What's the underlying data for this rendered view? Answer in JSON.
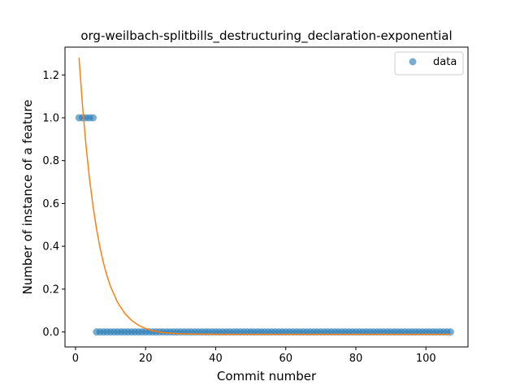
{
  "chart_data": {
    "type": "scatter",
    "title": "org-weilbach-splitbills_destructuring_declaration-exponential",
    "xlabel": "Commit number",
    "ylabel": "Number of instance of a feature",
    "xlim": [
      -3,
      112
    ],
    "ylim": [
      -0.07,
      1.33
    ],
    "x_ticks": [
      0,
      20,
      40,
      60,
      80,
      100
    ],
    "y_ticks": [
      0.0,
      0.2,
      0.4,
      0.6,
      0.8,
      1.0,
      1.2
    ],
    "x_tick_labels": [
      "0",
      "20",
      "40",
      "60",
      "80",
      "100"
    ],
    "y_tick_labels": [
      "0.0",
      "0.2",
      "0.4",
      "0.6",
      "0.8",
      "1.0",
      "1.2"
    ],
    "grid": false,
    "legend_position": "top-right",
    "series": [
      {
        "name": "data",
        "kind": "scatter",
        "color": "#1f77b4",
        "x": [
          1,
          2,
          3,
          4,
          5,
          6,
          7,
          8,
          9,
          10,
          11,
          12,
          13,
          14,
          15,
          16,
          17,
          18,
          19,
          20,
          21,
          22,
          23,
          24,
          25,
          26,
          27,
          28,
          29,
          30,
          31,
          32,
          33,
          34,
          35,
          36,
          37,
          38,
          39,
          40,
          41,
          42,
          43,
          44,
          45,
          46,
          47,
          48,
          49,
          50,
          51,
          52,
          53,
          54,
          55,
          56,
          57,
          58,
          59,
          60,
          61,
          62,
          63,
          64,
          65,
          66,
          67,
          68,
          69,
          70,
          71,
          72,
          73,
          74,
          75,
          76,
          77,
          78,
          79,
          80,
          81,
          82,
          83,
          84,
          85,
          86,
          87,
          88,
          89,
          90,
          91,
          92,
          93,
          94,
          95,
          96,
          97,
          98,
          99,
          100,
          101,
          102,
          103,
          104,
          105,
          106,
          107
        ],
        "y": [
          1,
          1,
          1,
          1,
          1,
          0,
          0,
          0,
          0,
          0,
          0,
          0,
          0,
          0,
          0,
          0,
          0,
          0,
          0,
          0,
          0,
          0,
          0,
          0,
          0,
          0,
          0,
          0,
          0,
          0,
          0,
          0,
          0,
          0,
          0,
          0,
          0,
          0,
          0,
          0,
          0,
          0,
          0,
          0,
          0,
          0,
          0,
          0,
          0,
          0,
          0,
          0,
          0,
          0,
          0,
          0,
          0,
          0,
          0,
          0,
          0,
          0,
          0,
          0,
          0,
          0,
          0,
          0,
          0,
          0,
          0,
          0,
          0,
          0,
          0,
          0,
          0,
          0,
          0,
          0,
          0,
          0,
          0,
          0,
          0,
          0,
          0,
          0,
          0,
          0,
          0,
          0,
          0,
          0,
          0,
          0,
          0,
          0,
          0,
          0,
          0,
          0,
          0,
          0,
          0,
          0,
          0
        ]
      },
      {
        "kind": "line",
        "color": "#ff7f0e",
        "x": [
          1,
          2,
          3,
          4,
          5,
          6,
          7,
          8,
          9,
          10,
          12,
          14,
          16,
          18,
          20,
          22,
          25,
          30,
          40,
          50,
          60,
          70,
          80,
          90,
          100,
          107
        ],
        "y": [
          1.28,
          1.057,
          0.87,
          0.715,
          0.587,
          0.481,
          0.393,
          0.321,
          0.261,
          0.212,
          0.138,
          0.088,
          0.054,
          0.031,
          0.016,
          0.006,
          -0.003,
          -0.009,
          -0.011,
          -0.011,
          -0.011,
          -0.011,
          -0.011,
          -0.011,
          -0.011,
          -0.011
        ]
      }
    ]
  }
}
